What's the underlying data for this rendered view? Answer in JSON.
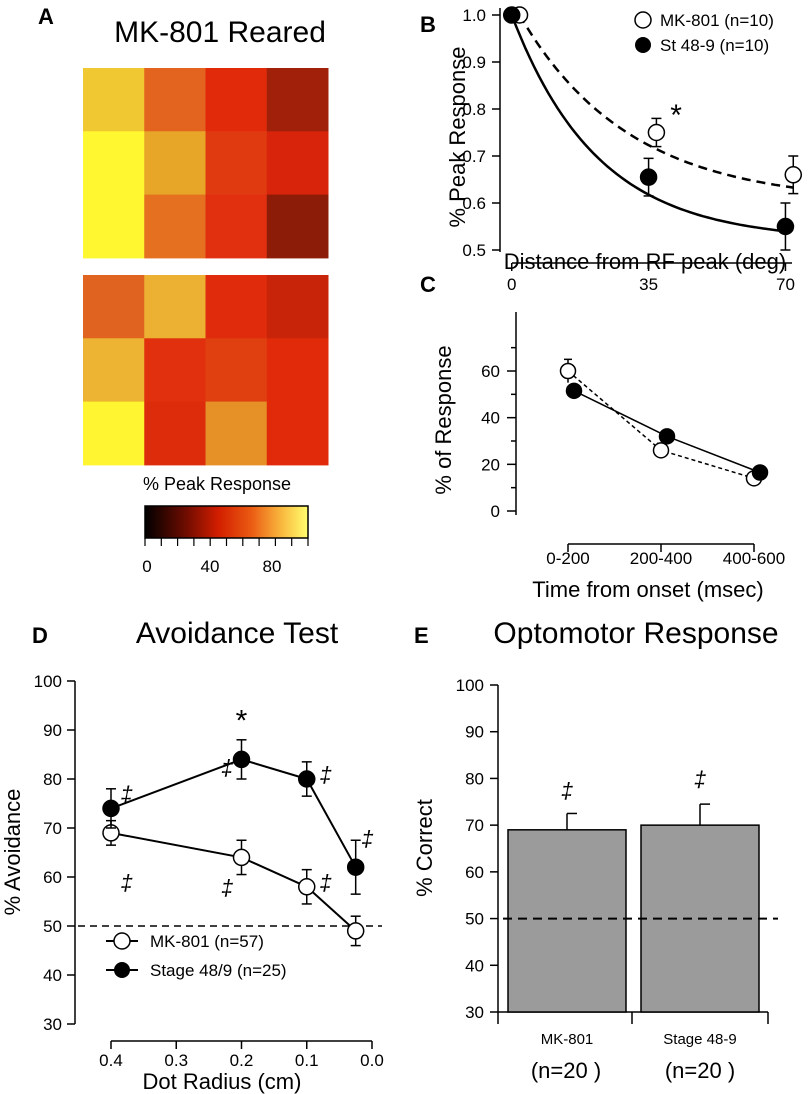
{
  "panels": {
    "A": {
      "letter": "A",
      "title": "MK-801 Reared",
      "heatmap_upper": [
        [
          "#f0c832",
          "#e2641e",
          "#e02a0a",
          "#a0200a"
        ],
        [
          "#fff830",
          "#e8a628",
          "#e03a10",
          "#d8240a"
        ],
        [
          "#fff830",
          "#e47020",
          "#e03010",
          "#8c1c08"
        ]
      ],
      "heatmap_lower": [
        [
          "#e06420",
          "#ecb032",
          "#e02c0c",
          "#c8240a"
        ],
        [
          "#ecb432",
          "#e0300e",
          "#e04010",
          "#e02a0a"
        ],
        [
          "#fff530",
          "#dc2c0c",
          "#e69028",
          "#e02a0a"
        ]
      ],
      "colorbar": {
        "label": "% Peak Response",
        "ticks": [
          "0",
          "40",
          "80"
        ],
        "range": [
          0,
          100
        ],
        "stops": [
          "#000000",
          "#6e0c00",
          "#d21e00",
          "#ea5a12",
          "#f8b03a",
          "#ffff6e"
        ]
      }
    },
    "B": {
      "letter": "B",
      "legend": [
        "MK-801 (n=10)",
        "St 48-9 (n=10)"
      ],
      "asterisk": "*"
    },
    "C": {
      "letter": "C"
    },
    "D": {
      "letter": "D",
      "title": "Avoidance Test",
      "legend": [
        "MK-801 (n=57)",
        "Stage 48/9 (n=25)"
      ],
      "dagger": "‡",
      "asterisk": "*"
    },
    "E": {
      "letter": "E",
      "title": "Optomotor Response",
      "n_labels": [
        "(n=20 )",
        "(n=20 )"
      ],
      "dagger": "‡"
    }
  },
  "chart_data": [
    {
      "id": "B",
      "type": "line",
      "xlabel": "Distance from RF peak (deg)",
      "ylabel": "% Peak Response",
      "xticks": [
        "0",
        "35",
        "70"
      ],
      "yticks": [
        "0.5",
        "0.6",
        "0.7",
        "0.8",
        "0.9",
        "1.0"
      ],
      "xlim": [
        -3,
        75
      ],
      "ylim": [
        0.47,
        1.0
      ],
      "series": [
        {
          "name": "MK-801 (n=10)",
          "marker": "open",
          "line": "dashed",
          "x": [
            2,
            37,
            72
          ],
          "y": [
            1.0,
            0.75,
            0.66
          ],
          "err": [
            0,
            0.03,
            0.04
          ],
          "fit": {
            "a": 0.6,
            "b": 0.4,
            "tau": 28
          }
        },
        {
          "name": "St 48-9 (n=10)",
          "marker": "filled",
          "line": "solid",
          "x": [
            0,
            35,
            70
          ],
          "y": [
            1.0,
            0.655,
            0.55
          ],
          "err": [
            0,
            0.04,
            0.05
          ],
          "fit": {
            "a": 0.52,
            "b": 0.48,
            "tau": 22
          }
        }
      ],
      "annotations": [
        {
          "text": "*",
          "x": 40,
          "y": 0.8
        }
      ]
    },
    {
      "id": "C",
      "type": "line",
      "xlabel": "Time from onset (msec)",
      "ylabel": "% of Response",
      "categories": [
        "0-200",
        "200-400",
        "400-600"
      ],
      "yticks": [
        "0",
        "20",
        "40",
        "60"
      ],
      "ylim": [
        -4,
        70
      ],
      "series": [
        {
          "name": "MK-801",
          "marker": "open",
          "line": "dashed",
          "values": [
            60,
            26,
            14
          ],
          "err": [
            5,
            3,
            1.5
          ]
        },
        {
          "name": "St 48-9",
          "marker": "filled",
          "line": "solid",
          "values": [
            51.5,
            32,
            16.5
          ],
          "err": [
            2.5,
            2,
            1
          ]
        }
      ]
    },
    {
      "id": "D",
      "type": "line",
      "xlabel": "Dot Radius (cm)",
      "ylabel": "% Avoidance",
      "xticks": [
        "0.4",
        "0.3",
        "0.2",
        "0.1",
        "0.0"
      ],
      "yticks": [
        "30",
        "40",
        "50",
        "60",
        "70",
        "80",
        "90",
        "100"
      ],
      "xlim": [
        0.441,
        -0.016
      ],
      "ylim": [
        28,
        100
      ],
      "reference_line": 50,
      "series": [
        {
          "name": "MK-801 (n=57)",
          "marker": "open",
          "x": [
            0.4,
            0.2,
            0.1,
            0.025
          ],
          "y": [
            69,
            64,
            58,
            49
          ],
          "err": [
            2.5,
            3.5,
            3.5,
            3
          ]
        },
        {
          "name": "Stage 48/9 (n=25)",
          "marker": "filled",
          "x": [
            0.4,
            0.2,
            0.1,
            0.025
          ],
          "y": [
            74,
            84,
            80,
            62
          ],
          "err": [
            4,
            4,
            3.5,
            5.5
          ]
        }
      ],
      "annotations": [
        {
          "text": "*",
          "x": 0.2,
          "y": 91.5
        },
        {
          "text": "‡",
          "x": 0.376,
          "y": 77
        },
        {
          "text": "‡",
          "x": 0.222,
          "y": 82.5
        },
        {
          "text": "‡",
          "x": 0.071,
          "y": 81
        },
        {
          "text": "‡",
          "x": 0.007,
          "y": 68
        },
        {
          "text": "‡",
          "x": 0.376,
          "y": 59
        },
        {
          "text": "‡",
          "x": 0.222,
          "y": 58
        },
        {
          "text": "‡",
          "x": 0.071,
          "y": 59
        }
      ]
    },
    {
      "id": "E",
      "type": "bar",
      "ylabel": "% Correct",
      "categories": [
        "MK-801",
        "Stage 48-9"
      ],
      "values": [
        69,
        70
      ],
      "err": [
        3.5,
        4.5
      ],
      "yticks": [
        "30",
        "40",
        "50",
        "60",
        "70",
        "80",
        "90",
        "100"
      ],
      "ylim": [
        30,
        100
      ],
      "reference_line": 50,
      "bar_color": "#9b9b9b",
      "annotations": [
        {
          "text": "‡",
          "category": 0,
          "y": 77.5
        },
        {
          "text": "‡",
          "category": 1,
          "y": 80
        }
      ]
    }
  ]
}
